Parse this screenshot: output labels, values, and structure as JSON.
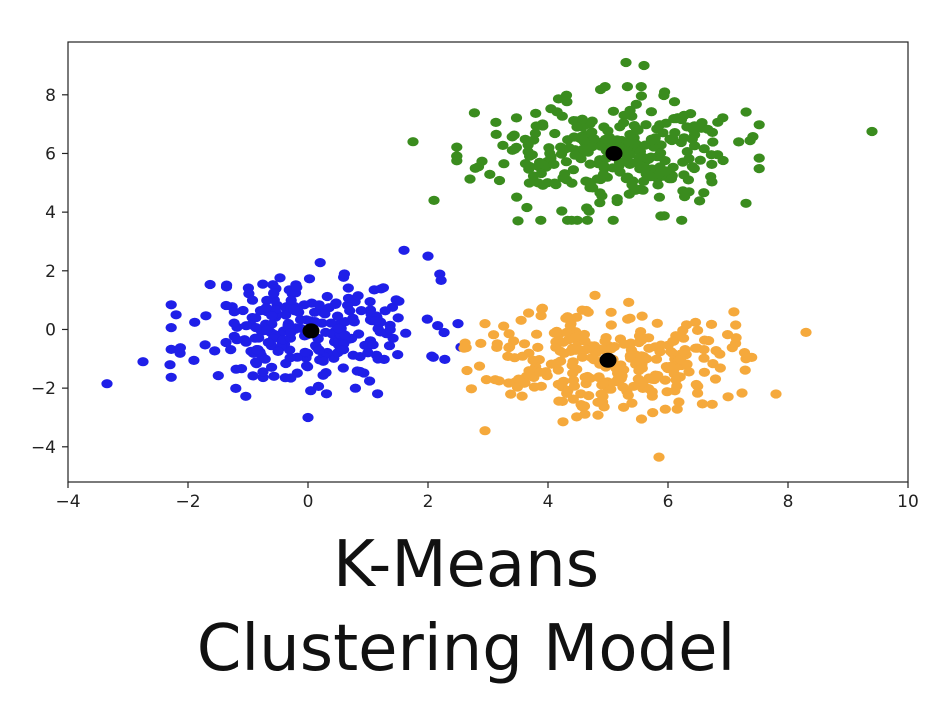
{
  "caption": {
    "line1": "K-Means",
    "line2": "Clustering Model"
  },
  "chart_data": {
    "type": "scatter",
    "title": "",
    "xlabel": "",
    "ylabel": "",
    "xlim": [
      -4,
      10
    ],
    "ylim": [
      -5.2,
      9.8
    ],
    "xticks": [
      -4,
      -2,
      0,
      2,
      4,
      6,
      8,
      10
    ],
    "yticks": [
      -4,
      -2,
      0,
      2,
      4,
      6,
      8
    ],
    "xtick_labels": [
      "−4",
      "−2",
      "0",
      "2",
      "4",
      "6",
      "8",
      "10"
    ],
    "ytick_labels": [
      "−4",
      "−2",
      "0",
      "2",
      "4",
      "6",
      "8"
    ],
    "grid": false,
    "series": [
      {
        "color": "#1f1fe8",
        "center": [
          0,
          0
        ],
        "spread": [
          0.95,
          0.95
        ],
        "count": 260,
        "seed": 11,
        "extra_points": [
          [
            -3.35,
            -1.85
          ],
          [
            -2.75,
            -1.1
          ],
          [
            2.5,
            0.2
          ],
          [
            2.55,
            -0.6
          ],
          [
            2.0,
            2.5
          ],
          [
            1.6,
            2.7
          ],
          [
            0.0,
            -3.0
          ],
          [
            -2.3,
            -1.2
          ]
        ]
      },
      {
        "color": "#3a8c1e",
        "center": [
          5.0,
          6.0
        ],
        "spread": [
          1.05,
          0.95
        ],
        "count": 300,
        "seed": 23,
        "extra_points": [
          [
            9.4,
            6.75
          ],
          [
            1.75,
            6.4
          ],
          [
            5.3,
            9.1
          ],
          [
            2.1,
            4.4
          ],
          [
            3.5,
            3.7
          ],
          [
            7.3,
            4.3
          ],
          [
            5.6,
            9.0
          ]
        ]
      },
      {
        "color": "#f5a93c",
        "center": [
          5.0,
          -1.0
        ],
        "spread": [
          1.0,
          0.9
        ],
        "count": 280,
        "seed": 37,
        "extra_points": [
          [
            8.3,
            -0.1
          ],
          [
            5.85,
            -4.35
          ],
          [
            2.95,
            -3.45
          ],
          [
            2.65,
            -1.4
          ],
          [
            7.8,
            -2.2
          ],
          [
            7.3,
            -1.0
          ],
          [
            2.95,
            0.2
          ]
        ]
      }
    ],
    "centroids": {
      "color": "#000000",
      "points": [
        [
          0.05,
          -0.05
        ],
        [
          5.1,
          6.0
        ],
        [
          5.0,
          -1.05
        ]
      ]
    }
  }
}
